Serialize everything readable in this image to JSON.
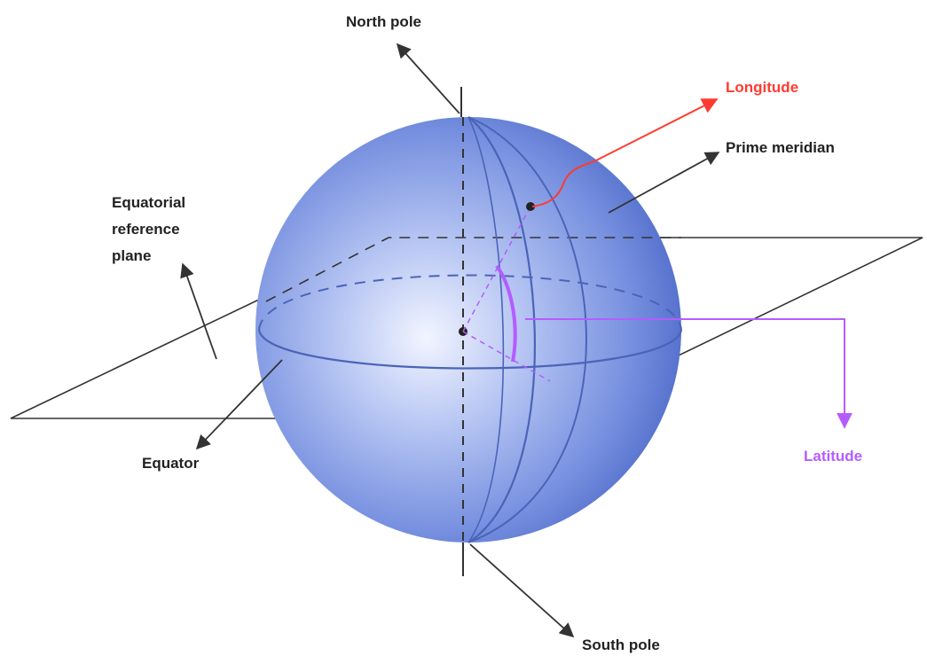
{
  "labels": {
    "north_pole": "North pole",
    "south_pole": "South pole",
    "longitude": "Longitude",
    "prime_meridian": "Prime meridian",
    "equatorial_plane_line1": "Equatorial",
    "equatorial_plane_line2": "reference",
    "equatorial_plane_line3": "plane",
    "equator": "Equator",
    "latitude": "Latitude"
  },
  "colors": {
    "sphere_light": "#dfe6fb",
    "sphere_mid": "#7f97e3",
    "sphere_dark": "#3f5fc0",
    "line": "#333333",
    "longitude": "#ff3b30",
    "latitude": "#b45cff",
    "text": "#222222"
  }
}
